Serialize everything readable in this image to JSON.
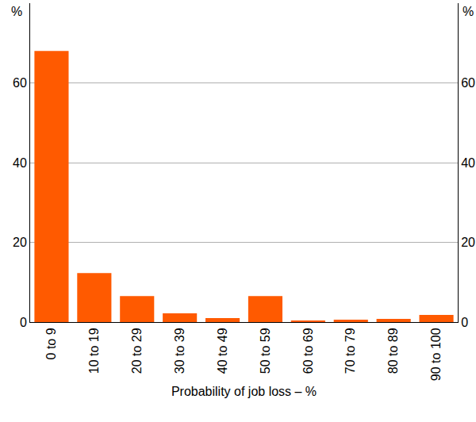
{
  "chart_data": {
    "type": "bar",
    "xlabel": "Probability of job loss – %",
    "ylabel": "%",
    "categories": [
      "0 to 9",
      "10 to 19",
      "20 to 29",
      "30 to 39",
      "40 to 49",
      "50 to 59",
      "60 to 69",
      "70 to 79",
      "80 to 89",
      "90 to 100"
    ],
    "values": [
      68.0,
      12.3,
      6.5,
      2.2,
      1.0,
      6.5,
      0.4,
      0.6,
      0.8,
      1.8
    ],
    "color": "#ff5a00",
    "ylim": [
      0,
      80
    ],
    "yticks": [
      0,
      20,
      40,
      60
    ],
    "grid": true
  }
}
